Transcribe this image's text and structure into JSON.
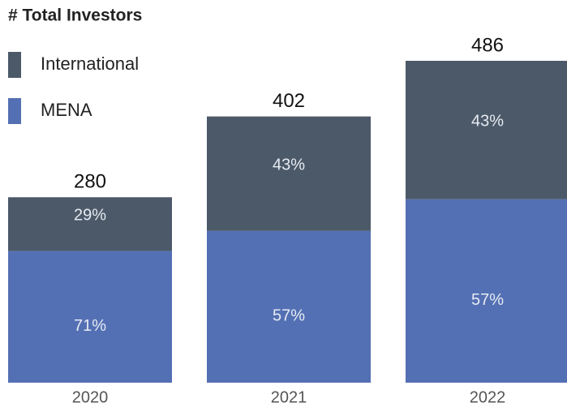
{
  "chart_data": {
    "type": "stacked_bar_percent",
    "title": "# Total Investors",
    "categories": [
      "2020",
      "2021",
      "2022"
    ],
    "totals": [
      280,
      402,
      486
    ],
    "series": [
      {
        "name": "MENA",
        "color": "#5470b4",
        "values": [
          71,
          57,
          57
        ],
        "value_labels": [
          "71%",
          "57%",
          "57%"
        ]
      },
      {
        "name": "International",
        "color": "#4c5968",
        "values": [
          29,
          43,
          43
        ],
        "value_labels": [
          "29%",
          "43%",
          "43%"
        ]
      }
    ]
  }
}
